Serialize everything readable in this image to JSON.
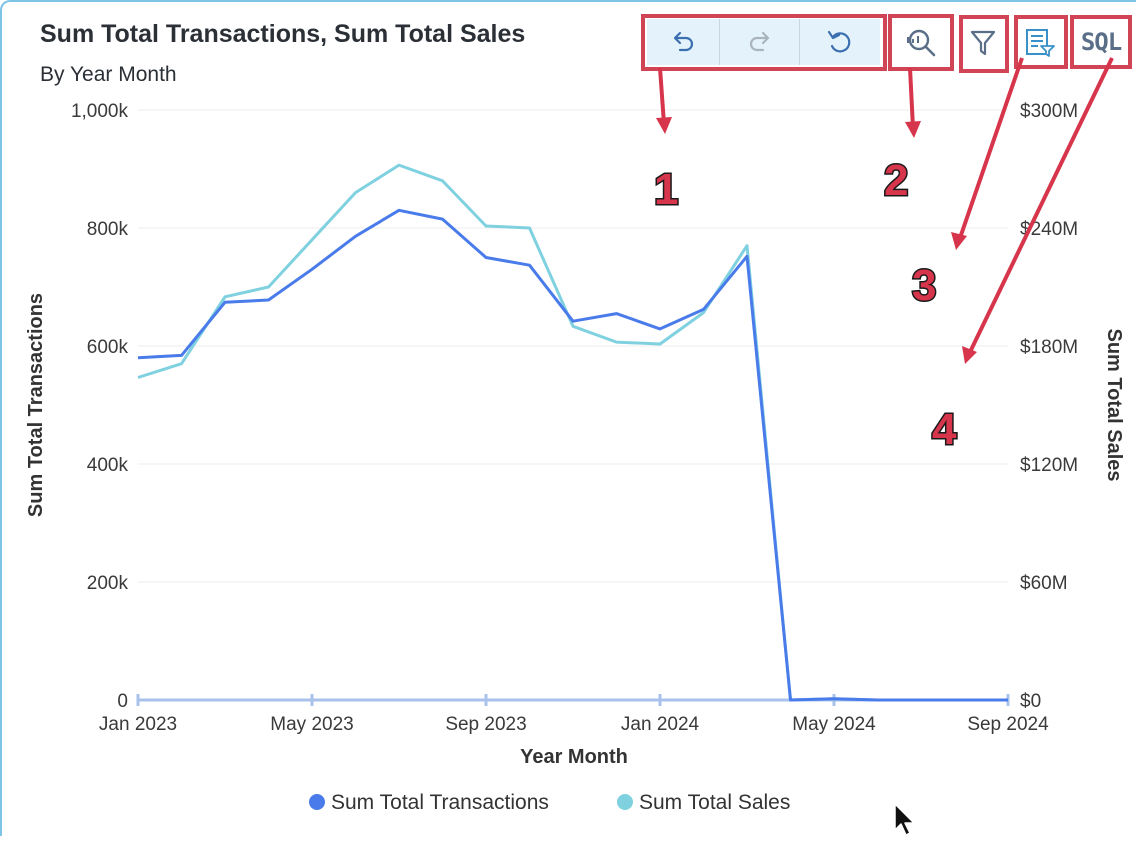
{
  "header": {
    "title": "Sum Total Transactions, Sum Total Sales",
    "subtitle": "By Year Month"
  },
  "toolbar": {
    "undo_icon": "undo-icon",
    "redo_icon": "redo-icon",
    "reset_icon": "reset-icon",
    "zoom_icon": "zoom-inspect-icon",
    "filter_icon": "filter-icon",
    "list_filter_icon": "list-filter-icon",
    "sql_label": "SQL"
  },
  "annotations": [
    "1",
    "2",
    "3",
    "4"
  ],
  "colors": {
    "transactions": "#4a7bea",
    "sales": "#7fd1e0",
    "highlight": "#d04456",
    "arrow": "#d6354b"
  },
  "chart_data": {
    "type": "line",
    "xlabel": "Year Month",
    "ylabel_left": "Sum Total Transactions",
    "ylabel_right": "Sum Total Sales",
    "x_ticks": [
      "Jan 2023",
      "May 2023",
      "Sep 2023",
      "Jan 2024",
      "May 2024",
      "Sep 2024"
    ],
    "y_left_ticks": [
      "0",
      "200k",
      "400k",
      "600k",
      "800k",
      "1,000k"
    ],
    "y_right_ticks": [
      "$0",
      "$60M",
      "$120M",
      "$180M",
      "$240M",
      "$300M"
    ],
    "ylim_left": [
      0,
      1000000
    ],
    "ylim_right": [
      0,
      300000000
    ],
    "x": [
      "2023-01",
      "2023-02",
      "2023-03",
      "2023-04",
      "2023-05",
      "2023-06",
      "2023-07",
      "2023-08",
      "2023-09",
      "2023-10",
      "2023-11",
      "2023-12",
      "2024-01",
      "2024-02",
      "2024-03",
      "2024-04",
      "2024-05",
      "2024-06",
      "2024-07",
      "2024-08",
      "2024-09"
    ],
    "series": [
      {
        "name": "Sum Total Transactions",
        "axis": "left",
        "values": [
          580000,
          584000,
          674000,
          678000,
          730000,
          786000,
          830000,
          815000,
          750000,
          737000,
          642000,
          655000,
          629000,
          662000,
          752000,
          0,
          2000,
          0,
          0,
          0,
          0
        ]
      },
      {
        "name": "Sum Total Sales",
        "axis": "right",
        "values": [
          164000000,
          171000000,
          205000000,
          210000000,
          234000000,
          258000000,
          272000000,
          264000000,
          241000000,
          240000000,
          190000000,
          182000000,
          181000000,
          197000000,
          231000000,
          0,
          600000,
          0,
          0,
          0,
          0
        ]
      }
    ],
    "legend": "bottom",
    "grid": true
  }
}
